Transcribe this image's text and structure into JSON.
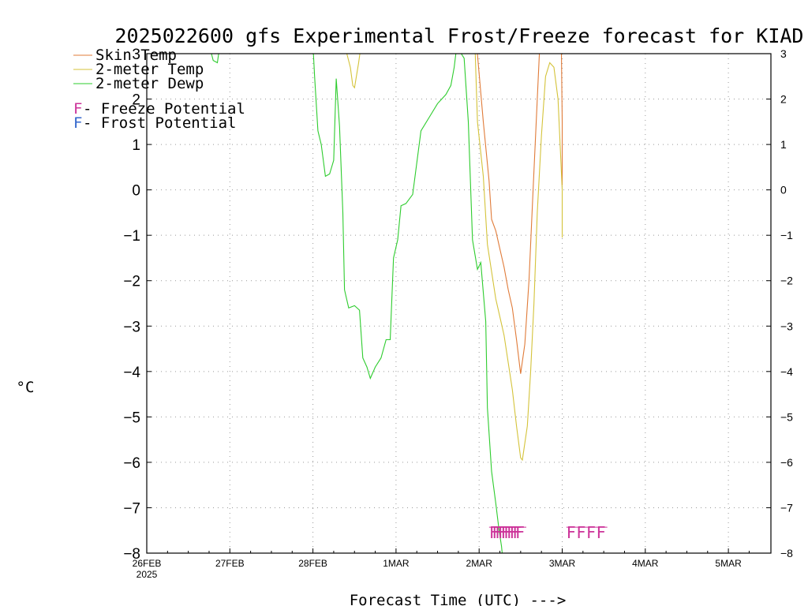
{
  "chart_data": {
    "type": "line",
    "title": "2025022600 gfs Experimental Frost/Freeze forecast for KIAD",
    "ylabel": "°C",
    "xlabel": "Forecast Time (UTC) --->",
    "ylim": [
      -8,
      3
    ],
    "xlim": [
      0,
      7.5
    ],
    "grid": true,
    "y_ticks": [
      -8,
      -7,
      -6,
      -5,
      -4,
      -3,
      -2,
      -1,
      0,
      1,
      2,
      3
    ],
    "x_ticks": [
      {
        "x": 0,
        "label": "26FEB",
        "sublabel": "2025"
      },
      {
        "x": 1,
        "label": "27FEB"
      },
      {
        "x": 2,
        "label": "28FEB"
      },
      {
        "x": 3,
        "label": "1MAR"
      },
      {
        "x": 4,
        "label": "2MAR"
      },
      {
        "x": 5,
        "label": "3MAR"
      },
      {
        "x": 6,
        "label": "4MAR"
      },
      {
        "x": 7,
        "label": "5MAR"
      }
    ],
    "series": [
      {
        "name": "Skin Temp",
        "color": "#e07b39",
        "points": [
          [
            3.97,
            3.2
          ],
          [
            4.05,
            1.5
          ],
          [
            4.12,
            0.2
          ],
          [
            4.15,
            -0.65
          ],
          [
            4.2,
            -0.9
          ],
          [
            4.25,
            -1.3
          ],
          [
            4.3,
            -1.7
          ],
          [
            4.35,
            -2.2
          ],
          [
            4.4,
            -2.6
          ],
          [
            4.45,
            -3.3
          ],
          [
            4.5,
            -4.05
          ],
          [
            4.55,
            -3.4
          ],
          [
            4.6,
            -2.0
          ],
          [
            4.65,
            0.0
          ],
          [
            4.7,
            2.0
          ],
          [
            4.73,
            3.2
          ],
          [
            4.99,
            3.2
          ],
          [
            5.0,
            1.5
          ],
          [
            5.0,
            0.1
          ]
        ]
      },
      {
        "name": "2-meter Temp",
        "color": "#d4c33a",
        "points": [
          [
            2.38,
            3.2
          ],
          [
            2.45,
            2.7
          ],
          [
            2.48,
            2.3
          ],
          [
            2.5,
            2.25
          ],
          [
            2.55,
            2.8
          ],
          [
            2.58,
            3.2
          ],
          [
            3.95,
            3.2
          ],
          [
            3.98,
            1.5
          ],
          [
            4.05,
            0.3
          ],
          [
            4.1,
            -1.2
          ],
          [
            4.15,
            -1.8
          ],
          [
            4.2,
            -2.4
          ],
          [
            4.3,
            -3.2
          ],
          [
            4.4,
            -4.4
          ],
          [
            4.45,
            -5.2
          ],
          [
            4.5,
            -5.9
          ],
          [
            4.52,
            -5.95
          ],
          [
            4.58,
            -5.2
          ],
          [
            4.62,
            -4.0
          ],
          [
            4.66,
            -2.5
          ],
          [
            4.7,
            -0.5
          ],
          [
            4.75,
            1.2
          ],
          [
            4.8,
            2.5
          ],
          [
            4.85,
            2.8
          ],
          [
            4.9,
            2.7
          ],
          [
            4.95,
            2.0
          ],
          [
            5.0,
            0.0
          ],
          [
            5.0,
            -1.05
          ]
        ]
      },
      {
        "name": "2-meter Dewp",
        "color": "#2ecc2e",
        "points": [
          [
            0.75,
            3.2
          ],
          [
            0.8,
            2.85
          ],
          [
            0.85,
            2.8
          ],
          [
            0.88,
            3.2
          ],
          [
            2.0,
            3.2
          ],
          [
            2.02,
            2.5
          ],
          [
            2.06,
            1.3
          ],
          [
            2.1,
            1.0
          ],
          [
            2.15,
            0.3
          ],
          [
            2.2,
            0.35
          ],
          [
            2.25,
            0.65
          ],
          [
            2.28,
            2.45
          ],
          [
            2.32,
            1.4
          ],
          [
            2.36,
            -0.5
          ],
          [
            2.38,
            -2.2
          ],
          [
            2.43,
            -2.6
          ],
          [
            2.5,
            -2.55
          ],
          [
            2.56,
            -2.65
          ],
          [
            2.6,
            -3.7
          ],
          [
            2.65,
            -3.9
          ],
          [
            2.69,
            -4.15
          ],
          [
            2.75,
            -3.9
          ],
          [
            2.82,
            -3.7
          ],
          [
            2.88,
            -3.3
          ],
          [
            2.93,
            -3.3
          ],
          [
            2.97,
            -1.5
          ],
          [
            3.02,
            -1.1
          ],
          [
            3.06,
            -0.35
          ],
          [
            3.12,
            -0.3
          ],
          [
            3.2,
            -0.1
          ],
          [
            3.3,
            1.3
          ],
          [
            3.4,
            1.6
          ],
          [
            3.5,
            1.9
          ],
          [
            3.6,
            2.1
          ],
          [
            3.66,
            2.3
          ],
          [
            3.7,
            2.7
          ],
          [
            3.72,
            3.0
          ],
          [
            3.75,
            3.1
          ],
          [
            3.82,
            2.9
          ],
          [
            3.87,
            1.5
          ],
          [
            3.92,
            -1.1
          ],
          [
            3.98,
            -1.75
          ],
          [
            4.02,
            -1.6
          ],
          [
            4.08,
            -2.9
          ],
          [
            4.1,
            -4.8
          ],
          [
            4.15,
            -6.2
          ],
          [
            4.2,
            -6.9
          ],
          [
            4.24,
            -7.5
          ],
          [
            4.27,
            -7.85
          ],
          [
            4.28,
            -8.05
          ]
        ]
      }
    ],
    "markers": [
      {
        "x": 4.12,
        "y": -7.55,
        "label": "FFFFFFFFFF",
        "color": "#cc3399",
        "spacing": 0.035
      },
      {
        "x": 5.05,
        "y": -7.55,
        "label": "FFFF",
        "color": "#cc3399",
        "spacing": 0.12
      }
    ],
    "legend": {
      "position": "top-left",
      "entries": [
        {
          "text": "Skin Temp",
          "color": "#e07b39",
          "style": "line"
        },
        {
          "text": "2-meter Temp",
          "color": "#d4c33a",
          "style": "line"
        },
        {
          "text": "2-meter Dewp",
          "color": "#2ecc2e",
          "style": "line"
        },
        {
          "text": " - Freeze Potential",
          "symbol": "F",
          "symbol_color": "#cc3399",
          "style": "symbol"
        },
        {
          "text": " - Frost Potential",
          "symbol": "F",
          "symbol_color": "#3366cc",
          "style": "symbol"
        }
      ]
    }
  }
}
